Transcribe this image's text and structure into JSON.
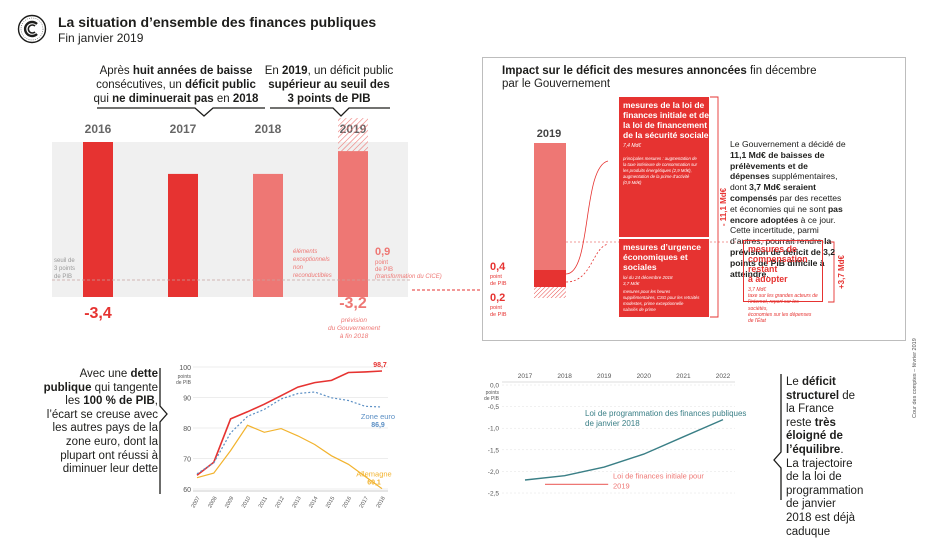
{
  "header": {
    "title": "La situation d’ensemble des finances publiques",
    "subtitle": "Fin janvier 2019"
  },
  "callouts": {
    "left_1": "Après ",
    "left_b1": "huit années de baisse",
    "left_2": " consécutives, un ",
    "left_b2": "déficit public",
    "left_3": " qui ",
    "left_b3": "ne diminuerait pas",
    "left_4": " en ",
    "left_b4": "2018",
    "right_1": "En ",
    "right_b1": "2019",
    "right_2": ", un déficit public ",
    "right_b2": "supérieur au seuil des 3 points de PIB"
  },
  "top_chart": {
    "years": [
      "2016",
      "2017",
      "2018",
      "2019"
    ],
    "values": [
      "-3,4",
      "-2,7",
      "-2,7",
      "-3,2"
    ],
    "threshold_label": [
      "seuil de",
      "3 points",
      "de PIB"
    ],
    "label_2018": [
      "éléments",
      "exceptionnels",
      "non",
      "reconductibles"
    ],
    "label_2019_value": "0,9",
    "label_2019_lines": [
      "point",
      "de PIB",
      "(transformation du CICE)"
    ],
    "forecast_label": [
      "prévision",
      "du Gouvernement",
      "à fin 2018"
    ]
  },
  "panel": {
    "title_b": "Impact sur le déficit des mesures annoncées",
    "title_r1": " fin décembre",
    "title_r2": "par le Gouvernement",
    "year": "2019",
    "val_04": "0,4",
    "val_02": "0,2",
    "pt_de_pib": [
      "point",
      "de PIB"
    ],
    "box1_title": [
      "mesures de la loi de",
      "finances initiale et de",
      "la loi de financement",
      "de la sécurité sociale"
    ],
    "box1_amount": "7,4 Md€",
    "box1_detail": [
      "principales mesures : augmentation de",
      "la taxe intérieure de consommation sur",
      "les produits énergétiques (2,9 Md€),",
      "augmentation de la prime d'activité",
      "(0,9 Md€)"
    ],
    "box2_title": [
      "mesures d’urgence",
      "économiques et",
      "sociales"
    ],
    "box2_date": "loi du 24 décembre 2018",
    "box2_amount": "3,7 Md€",
    "box2_detail": [
      "mesures pour les heures",
      "supplémentaires, CSG pour les retraités",
      "modestes, prime exceptionnelle",
      "salariés de prime"
    ],
    "bracket1": "- 11,1 Md€",
    "bracket2": "+3,7 Md€",
    "gov_text": {
      "a": "Le Gouvernement a décidé de ",
      "b": "11,1 Md€ de baisses de prélèvements et de dépenses",
      "c": " supplémentaires, dont ",
      "d": "3,7 Md€ seraient compensés",
      "e": " par des recettes et économies qui ne sont ",
      "f": "pas encore adoptées",
      "g": " à ce jour. Cette incertitude, parmi d’autres, pourrait rendre ",
      "h": "la prévision de déficit de 3,2 points de PIB difficile à atteindre",
      "i": "."
    },
    "comp_title": [
      "mesures de",
      "compensation restant",
      "à adopter"
    ],
    "comp_amount": "3,7 Md€",
    "comp_detail": [
      "taxe sur les grandes acteurs de",
      "l'internet, report sur les sociétés,",
      "économies sur les dépenses",
      "de l'État"
    ]
  },
  "left_text": {
    "a": "Avec une ",
    "b": "dette publique",
    "c": " qui tangente les ",
    "d": "100 % de PIB",
    "e": ", l’écart se creuse avec les autres pays de la zone euro, dont la plupart ont réussi à diminuer leur dette"
  },
  "right_text": {
    "a": "Le ",
    "b": "déficit structurel",
    "c": " de la France reste ",
    "d": "très éloigné de l’équilibre",
    "e": ". La trajectoire de la loi de programmation de janvier 2018 est déjà caduque"
  },
  "side_note": "Cour des comptes – février 2019",
  "chart_data": [
    {
      "type": "bar",
      "categories": [
        "2016",
        "2017",
        "2018",
        "2019"
      ],
      "series": [
        {
          "values": [
            -3.4,
            -2.7,
            -2.7,
            -3.2
          ]
        },
        {
          "values": [
            0,
            0,
            0,
            0.9
          ]
        }
      ],
      "threshold": -3.0
    },
    {
      "type": "line",
      "x": [
        "2007",
        "2008",
        "2009",
        "2010",
        "2011",
        "2012",
        "2013",
        "2014",
        "2015",
        "2016",
        "2017",
        "2018"
      ],
      "yaxis_title": [
        "points",
        "de PIB"
      ],
      "ylim": [
        60,
        100
      ],
      "yticks": [
        60,
        70,
        80,
        90,
        100
      ],
      "series": [
        {
          "name": "France",
          "color": "#e63331",
          "values": [
            64.5,
            68.8,
            83.0,
            85.3,
            87.8,
            90.6,
            93.4,
            94.9,
            95.6,
            98.2,
            98.4,
            98.7
          ],
          "end_label": "98,7"
        },
        {
          "name": "Zone euro",
          "color": "#5b8fc4",
          "values": [
            65.0,
            68.6,
            78.4,
            83.8,
            86.1,
            89.5,
            91.3,
            91.8,
            89.9,
            89.0,
            87.1,
            86.9
          ],
          "end_label": "86,9"
        },
        {
          "name": "Allemagne",
          "color": "#f2b32e",
          "values": [
            63.7,
            65.2,
            72.6,
            80.9,
            78.6,
            79.8,
            77.4,
            74.6,
            70.9,
            68.1,
            64.1,
            60.1
          ],
          "end_label": "60,1"
        }
      ]
    },
    {
      "type": "line",
      "x": [
        "2017",
        "2018",
        "2019",
        "2020",
        "2021",
        "2022"
      ],
      "yaxis_title": [
        "points",
        "de PIB"
      ],
      "ylim": [
        -2.5,
        0.0
      ],
      "yticks": [
        "-2,5",
        "-2,0",
        "-1,5",
        "-1,0",
        "-0,5",
        "0,0"
      ],
      "series": [
        {
          "name": "Loi de programmation des finances publiques de janvier 2018",
          "color": "#3a7f86",
          "values": [
            -2.2,
            -2.1,
            -1.9,
            -1.6,
            -1.2,
            -0.8
          ]
        },
        {
          "name": "Loi de finances initiale pour 2019",
          "color": "#ee7774",
          "values": [
            null,
            null,
            -2.3,
            null,
            null,
            null
          ]
        }
      ]
    }
  ]
}
